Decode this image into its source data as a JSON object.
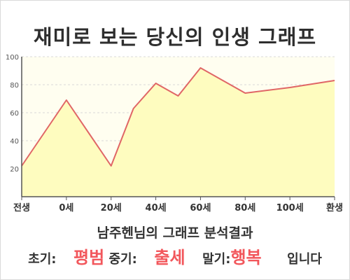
{
  "title": "재미로 보는 당신의 인생 그래프",
  "analysis_title": "남주헨님의 그래프 분석결과",
  "summary": {
    "early_label": "초기:",
    "early_value": "평범",
    "mid_label": "중기:",
    "mid_value": "출세",
    "late_label": "말기:",
    "late_value": "행복",
    "suffix": "입니다"
  },
  "colors": {
    "area_fill": "#fefcbf",
    "line": "#e06666",
    "plot_bg": "#fffef0",
    "grid": "#d8d8d8",
    "highlight": "#f2575c"
  },
  "chart_data": {
    "type": "area",
    "title": "재미로 보는 당신의 인생 그래프",
    "xlabel": "",
    "ylabel": "",
    "ylim": [
      0,
      100
    ],
    "yticks": [
      20,
      40,
      60,
      80,
      100
    ],
    "xticks": [
      "전생",
      "0세",
      "20세",
      "40세",
      "60세",
      "80세",
      "100세",
      "환생"
    ],
    "grid": true,
    "legend": "none",
    "series": [
      {
        "points": [
          {
            "x": "전생",
            "y": 22
          },
          {
            "x": "0세",
            "y": 69
          },
          {
            "x": "20세",
            "y": 22
          },
          {
            "x": "30세",
            "y": 63
          },
          {
            "x": "40세",
            "y": 81
          },
          {
            "x": "50세",
            "y": 72
          },
          {
            "x": "60세",
            "y": 92
          },
          {
            "x": "80세",
            "y": 74
          },
          {
            "x": "100세",
            "y": 78
          },
          {
            "x": "환생",
            "y": 83
          }
        ]
      }
    ]
  }
}
